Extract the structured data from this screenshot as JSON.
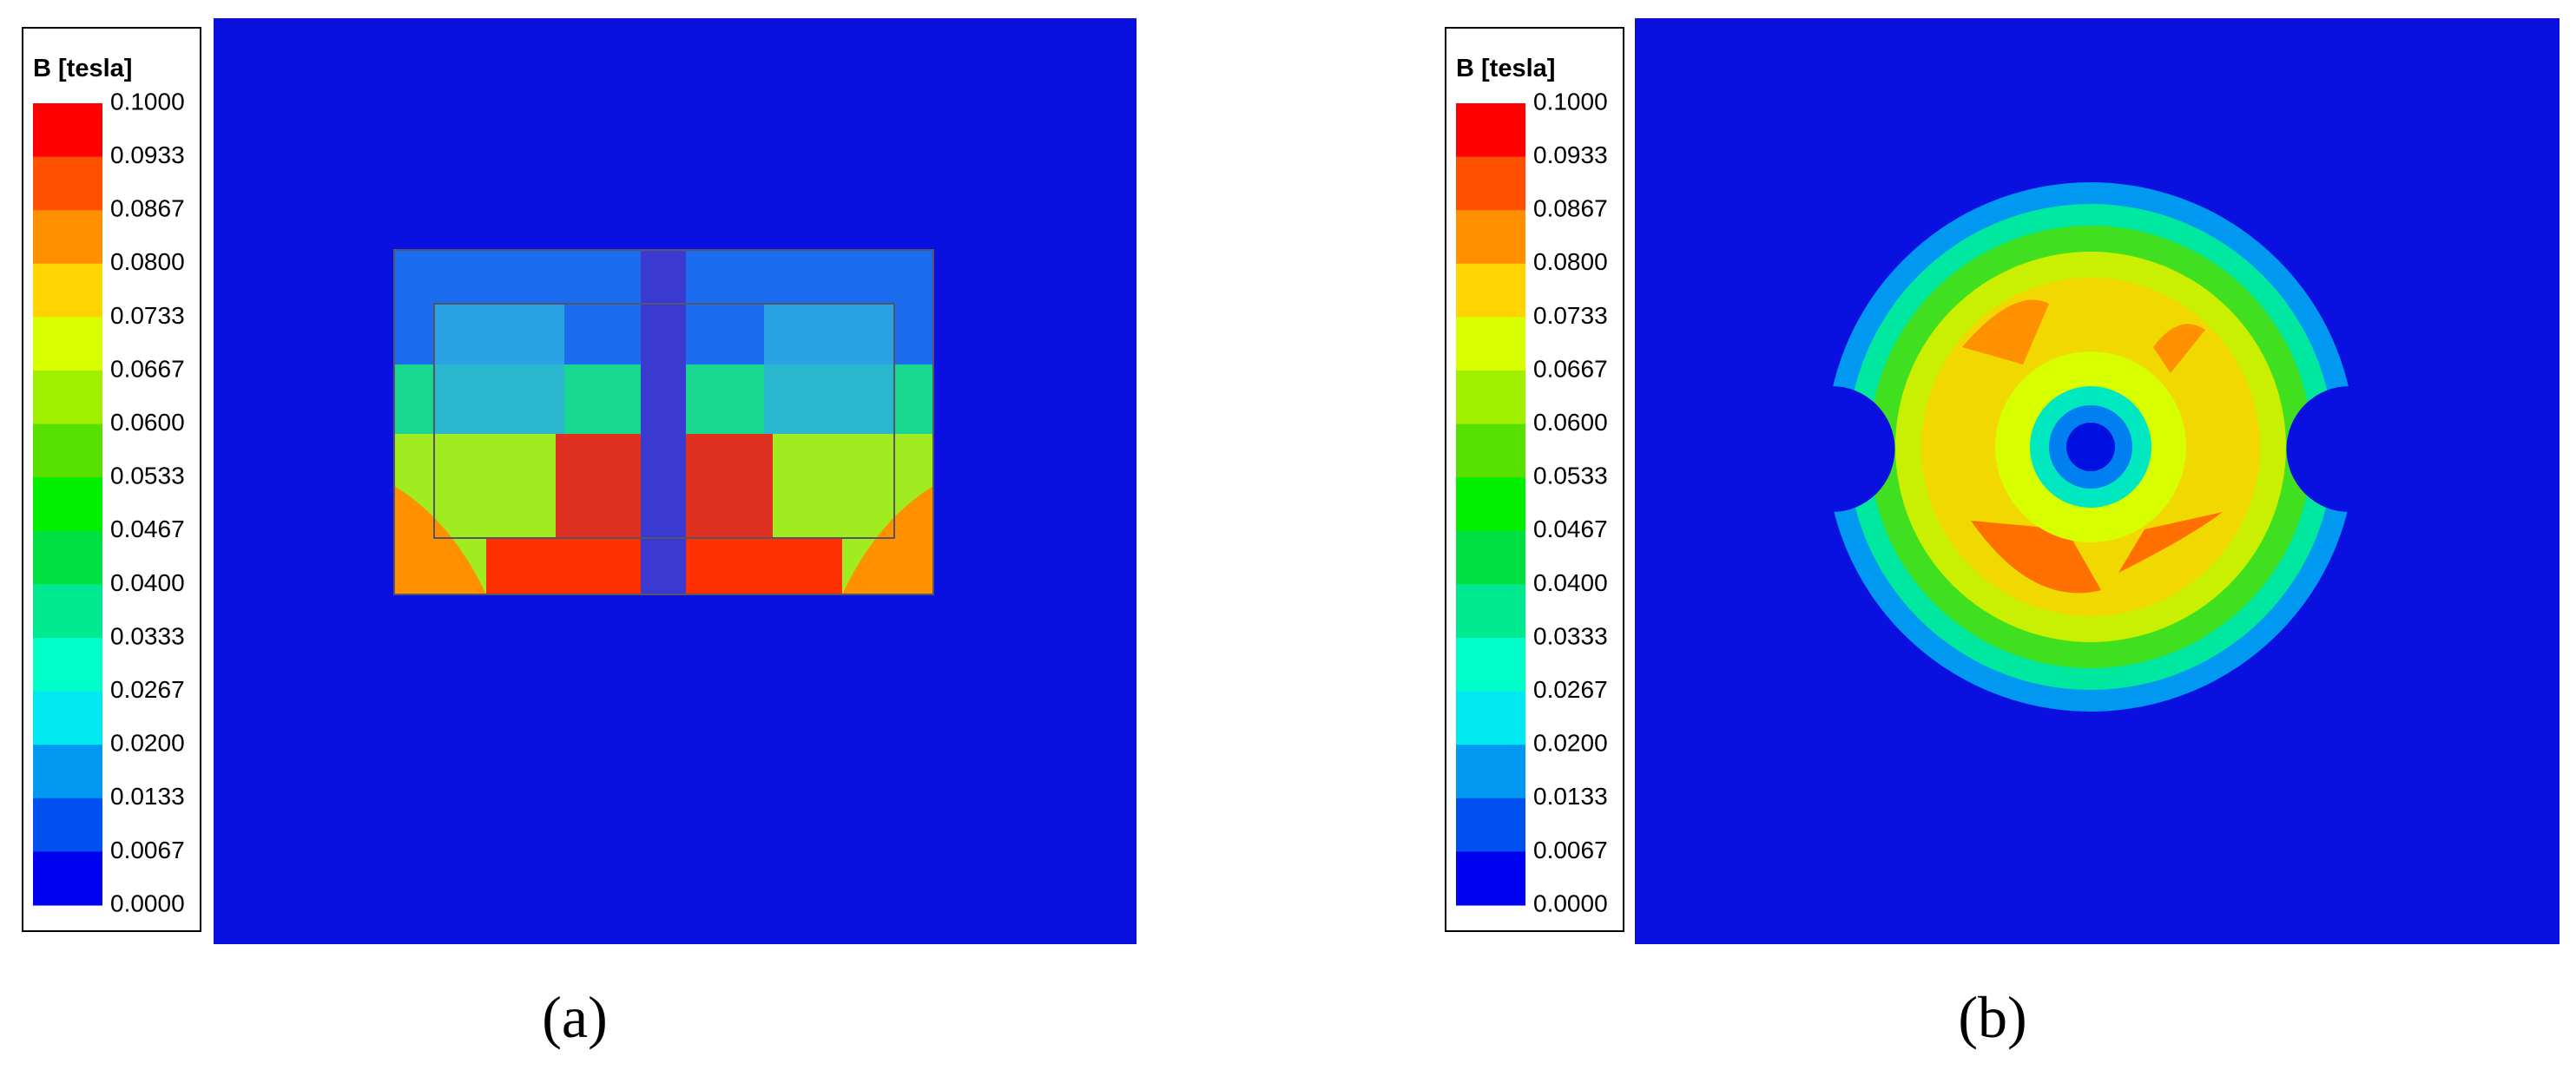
{
  "panels": [
    {
      "label": "(a)",
      "colorbar": {
        "title": "B [tesla]",
        "ticks": [
          "0.1000",
          "0.0933",
          "0.0867",
          "0.0800",
          "0.0733",
          "0.0667",
          "0.0600",
          "0.0533",
          "0.0467",
          "0.0400",
          "0.0333",
          "0.0267",
          "0.0200",
          "0.0133",
          "0.0067",
          "0.0000"
        ],
        "colors": [
          "#ff0000",
          "#ff5000",
          "#ff9000",
          "#ffd400",
          "#d8ff00",
          "#a0f000",
          "#58e000",
          "#00f000",
          "#00e040",
          "#00e890",
          "#00ffc8",
          "#00e8f0",
          "#0098f0",
          "#0050f0",
          "#0000f0"
        ]
      }
    },
    {
      "label": "(b)",
      "colorbar": {
        "title": "B [tesla]",
        "ticks": [
          "0.1000",
          "0.0933",
          "0.0867",
          "0.0800",
          "0.0733",
          "0.0667",
          "0.0600",
          "0.0533",
          "0.0467",
          "0.0400",
          "0.0333",
          "0.0267",
          "0.0200",
          "0.0133",
          "0.0067",
          "0.0000"
        ],
        "colors": [
          "#ff0000",
          "#ff5000",
          "#ff9000",
          "#ffd400",
          "#d8ff00",
          "#a0f000",
          "#58e000",
          "#00f000",
          "#00e040",
          "#00e890",
          "#00ffc8",
          "#00e8f0",
          "#0098f0",
          "#0050f0",
          "#0000f0"
        ]
      }
    }
  ]
}
